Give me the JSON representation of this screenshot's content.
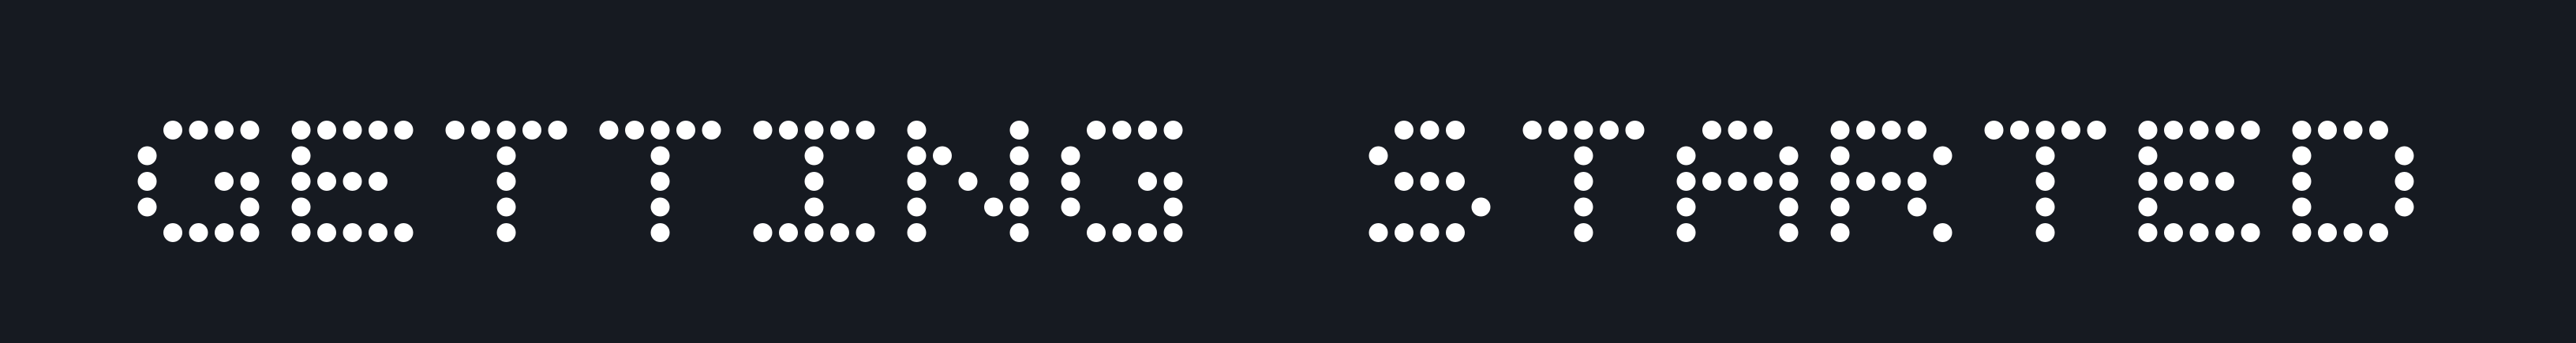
{
  "banner": {
    "text": "GETTING STARTED",
    "background_color": "#161a21",
    "dot_color": "#ffffff"
  }
}
